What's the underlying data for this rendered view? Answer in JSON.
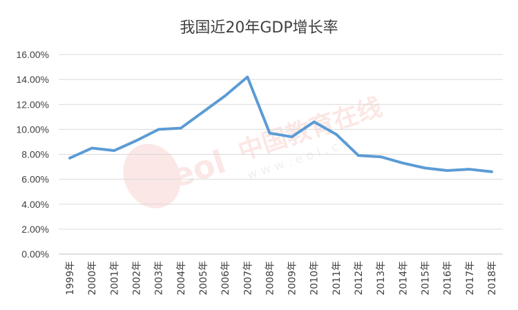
{
  "chart_data": {
    "type": "line",
    "title": "我国近20年GDP增长率",
    "xlabel": "",
    "ylabel": "",
    "categories": [
      "1999年",
      "2000年",
      "2001年",
      "2002年",
      "2003年",
      "2004年",
      "2005年",
      "2006年",
      "2007年",
      "2008年",
      "2009年",
      "2010年",
      "2011年",
      "2012年",
      "2013年",
      "2014年",
      "2015年",
      "2016年",
      "2017年",
      "2018年"
    ],
    "series": [
      {
        "values": [
          7.7,
          8.5,
          8.3,
          9.1,
          10.0,
          10.1,
          11.4,
          12.7,
          14.2,
          9.7,
          9.4,
          10.6,
          9.6,
          7.9,
          7.8,
          7.3,
          6.9,
          6.7,
          6.8,
          6.6
        ]
      }
    ],
    "ylim": [
      0,
      16
    ],
    "ytick_values": [
      0,
      2,
      4,
      6,
      8,
      10,
      12,
      14,
      16
    ],
    "ytick_labels": [
      "0.00%",
      "2.00%",
      "4.00%",
      "6.00%",
      "8.00%",
      "10.00%",
      "12.00%",
      "14.00%",
      "16.00%"
    ],
    "grid": true,
    "legend": "none",
    "line_color": "#5b9bd5"
  },
  "watermark": {
    "brand_text": "中国教育在线",
    "url_text": "w w w . e o l . c n",
    "logo_text": "eol",
    "logo_color": "#e84c3d"
  }
}
